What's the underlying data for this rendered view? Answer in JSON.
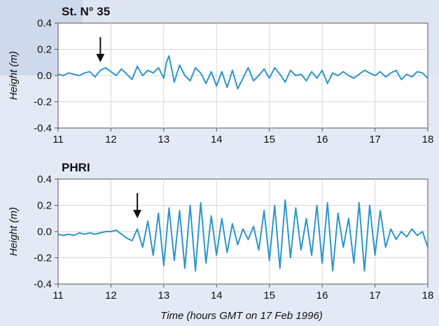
{
  "chart_data": [
    {
      "type": "line",
      "title": "St. N° 35",
      "ylabel": "Height (m)",
      "xlabel": "",
      "xlim": [
        11,
        18
      ],
      "ylim": [
        -0.4,
        0.4
      ],
      "xticks": [
        "11",
        "12",
        "13",
        "14",
        "15",
        "16",
        "17",
        "18"
      ],
      "yticks": [
        "0.4",
        "0.2",
        "0.0",
        "-0.2",
        "-0.4"
      ],
      "grid": true,
      "series_color": "#2d96cc",
      "arrow_at_time": 11.8,
      "series": [
        {
          "x": [
            11.0,
            11.1,
            11.2,
            11.3,
            11.4,
            11.5,
            11.6,
            11.7,
            11.8,
            11.9,
            12.0,
            12.1,
            12.2,
            12.3,
            12.4,
            12.5,
            12.6,
            12.7,
            12.8,
            12.9,
            13.0,
            13.05,
            13.1,
            13.15,
            13.2,
            13.3,
            13.4,
            13.5,
            13.6,
            13.7,
            13.8,
            13.9,
            14.0,
            14.1,
            14.2,
            14.3,
            14.4,
            14.5,
            14.6,
            14.7,
            14.8,
            14.9,
            15.0,
            15.1,
            15.2,
            15.3,
            15.4,
            15.5,
            15.6,
            15.7,
            15.8,
            15.9,
            16.0,
            16.1,
            16.2,
            16.3,
            16.4,
            16.5,
            16.6,
            16.7,
            16.8,
            16.9,
            17.0,
            17.1,
            17.2,
            17.3,
            17.4,
            17.5,
            17.6,
            17.7,
            17.8,
            17.9,
            18.0
          ],
          "y": [
            0.01,
            0.0,
            0.02,
            0.01,
            0.0,
            0.02,
            0.03,
            -0.01,
            0.04,
            0.06,
            0.03,
            0.0,
            0.05,
            0.01,
            -0.03,
            0.07,
            0.0,
            0.04,
            0.02,
            0.06,
            -0.02,
            0.1,
            0.15,
            0.05,
            -0.05,
            0.08,
            0.0,
            -0.04,
            0.06,
            0.02,
            -0.06,
            0.03,
            -0.08,
            0.03,
            -0.09,
            0.04,
            -0.1,
            -0.02,
            0.06,
            -0.04,
            0.0,
            0.05,
            -0.02,
            0.06,
            0.01,
            -0.05,
            0.04,
            0.0,
            0.01,
            -0.04,
            0.03,
            -0.02,
            0.04,
            -0.06,
            0.02,
            0.0,
            0.03,
            0.0,
            -0.02,
            0.01,
            0.04,
            0.02,
            0.0,
            0.03,
            -0.01,
            0.02,
            0.04,
            -0.03,
            0.01,
            -0.01,
            0.03,
            0.02,
            -0.02
          ]
        }
      ]
    },
    {
      "type": "line",
      "title": "PHRI",
      "ylabel": "Height (m)",
      "xlabel": "Time (hours GMT on 17 Feb 1996)",
      "xlim": [
        11,
        18
      ],
      "ylim": [
        -0.4,
        0.4
      ],
      "xticks": [
        "11",
        "12",
        "13",
        "14",
        "15",
        "16",
        "17",
        "18"
      ],
      "yticks": [
        "0.4",
        "0.2",
        "0.0",
        "-0.2",
        "-0.4"
      ],
      "grid": true,
      "series_color": "#2d96cc",
      "arrow_at_time": 12.5,
      "series": [
        {
          "x": [
            11.0,
            11.1,
            11.2,
            11.3,
            11.4,
            11.5,
            11.6,
            11.7,
            11.8,
            11.9,
            12.0,
            12.1,
            12.2,
            12.3,
            12.4,
            12.5,
            12.6,
            12.7,
            12.8,
            12.9,
            13.0,
            13.1,
            13.2,
            13.3,
            13.4,
            13.5,
            13.6,
            13.7,
            13.8,
            13.9,
            14.0,
            14.1,
            14.2,
            14.3,
            14.4,
            14.5,
            14.6,
            14.7,
            14.8,
            14.9,
            15.0,
            15.1,
            15.2,
            15.3,
            15.4,
            15.5,
            15.6,
            15.7,
            15.8,
            15.9,
            16.0,
            16.1,
            16.2,
            16.3,
            16.4,
            16.5,
            16.6,
            16.7,
            16.8,
            16.9,
            17.0,
            17.1,
            17.2,
            17.3,
            17.4,
            17.5,
            17.6,
            17.7,
            17.8,
            17.9,
            18.0
          ],
          "y": [
            -0.02,
            -0.03,
            -0.02,
            -0.03,
            -0.01,
            -0.02,
            -0.01,
            -0.02,
            -0.01,
            0.0,
            0.0,
            0.01,
            -0.02,
            -0.05,
            -0.07,
            0.02,
            -0.12,
            0.08,
            -0.18,
            0.14,
            -0.26,
            0.18,
            -0.22,
            0.16,
            -0.28,
            0.2,
            -0.3,
            0.22,
            -0.24,
            0.12,
            -0.18,
            0.1,
            -0.16,
            0.06,
            -0.1,
            0.02,
            -0.06,
            0.04,
            -0.14,
            0.16,
            -0.22,
            0.2,
            -0.28,
            0.24,
            -0.2,
            0.18,
            -0.14,
            0.1,
            -0.18,
            0.2,
            -0.24,
            0.22,
            -0.3,
            0.14,
            -0.12,
            0.1,
            -0.24,
            0.22,
            -0.3,
            0.2,
            -0.18,
            0.16,
            -0.12,
            0.02,
            -0.06,
            0.0,
            -0.04,
            0.02,
            -0.03,
            0.0,
            -0.12
          ]
        }
      ]
    }
  ]
}
